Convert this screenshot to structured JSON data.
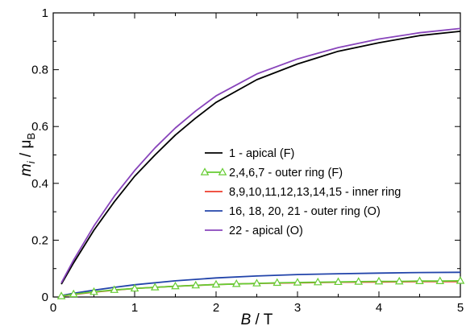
{
  "chart_data": {
    "type": "line",
    "title": "",
    "xlabel": {
      "italic": "B",
      "rest": " / T"
    },
    "ylabel": {
      "m": "m",
      "sub_i": "i",
      "slash": " / μ",
      "sub_B": "B"
    },
    "xlim": [
      0,
      5
    ],
    "ylim": [
      0,
      1
    ],
    "xticks": [
      0,
      1,
      2,
      3,
      4,
      5
    ],
    "xtick_labels": [
      "0",
      "1",
      "2",
      "3",
      "4",
      "5"
    ],
    "yticks": [
      0,
      0.2,
      0.4,
      0.6,
      0.8,
      1
    ],
    "ytick_labels": [
      "0",
      "0.2",
      "0.4",
      "0.6",
      "0.8",
      "1"
    ],
    "grid": false,
    "legend_position": "center-right",
    "series": [
      {
        "name": "1 - apical (F)",
        "color": "#000000",
        "marker": "none",
        "x": [
          0.1,
          0.25,
          0.5,
          0.75,
          1,
          1.25,
          1.5,
          1.75,
          2,
          2.5,
          3,
          3.5,
          4,
          4.5,
          5
        ],
        "y": [
          0.045,
          0.12,
          0.235,
          0.335,
          0.425,
          0.5,
          0.57,
          0.63,
          0.685,
          0.765,
          0.82,
          0.865,
          0.895,
          0.92,
          0.935
        ]
      },
      {
        "name": "2,4,6,7 - outer ring (F)",
        "color": "#66cc33",
        "marker": "triangle",
        "x": [
          0.1,
          0.25,
          0.5,
          0.75,
          1,
          1.25,
          1.5,
          1.75,
          2,
          2.25,
          2.5,
          2.75,
          3,
          3.25,
          3.5,
          3.75,
          4,
          4.25,
          4.5,
          4.75,
          5
        ],
        "y": [
          0.003,
          0.01,
          0.018,
          0.025,
          0.03,
          0.034,
          0.038,
          0.041,
          0.044,
          0.046,
          0.048,
          0.05,
          0.051,
          0.052,
          0.053,
          0.054,
          0.055,
          0.055,
          0.056,
          0.056,
          0.057
        ]
      },
      {
        "name": "8,9,10,11,12,13,14,15 - inner ring",
        "color": "#ee3b2b",
        "marker": "none",
        "x": [
          0.1,
          0.25,
          0.5,
          0.75,
          1,
          1.5,
          2,
          2.5,
          3,
          3.5,
          4,
          4.5,
          5
        ],
        "y": [
          0.003,
          0.009,
          0.017,
          0.024,
          0.03,
          0.038,
          0.044,
          0.048,
          0.05,
          0.052,
          0.053,
          0.054,
          0.054
        ]
      },
      {
        "name": "16, 18, 20, 21 - outer ring (O)",
        "color": "#2244aa",
        "marker": "none",
        "x": [
          0.1,
          0.25,
          0.5,
          0.75,
          1,
          1.5,
          2,
          2.5,
          3,
          3.5,
          4,
          4.5,
          5
        ],
        "y": [
          0.005,
          0.013,
          0.024,
          0.034,
          0.043,
          0.057,
          0.067,
          0.074,
          0.079,
          0.082,
          0.084,
          0.086,
          0.087
        ]
      },
      {
        "name": "22 - apical (O)",
        "color": "#8844bb",
        "marker": "none",
        "x": [
          0.1,
          0.25,
          0.5,
          0.75,
          1,
          1.25,
          1.5,
          1.75,
          2,
          2.5,
          3,
          3.5,
          4,
          4.5,
          5
        ],
        "y": [
          0.05,
          0.13,
          0.25,
          0.355,
          0.445,
          0.525,
          0.595,
          0.655,
          0.708,
          0.785,
          0.838,
          0.878,
          0.908,
          0.93,
          0.945
        ]
      }
    ]
  }
}
